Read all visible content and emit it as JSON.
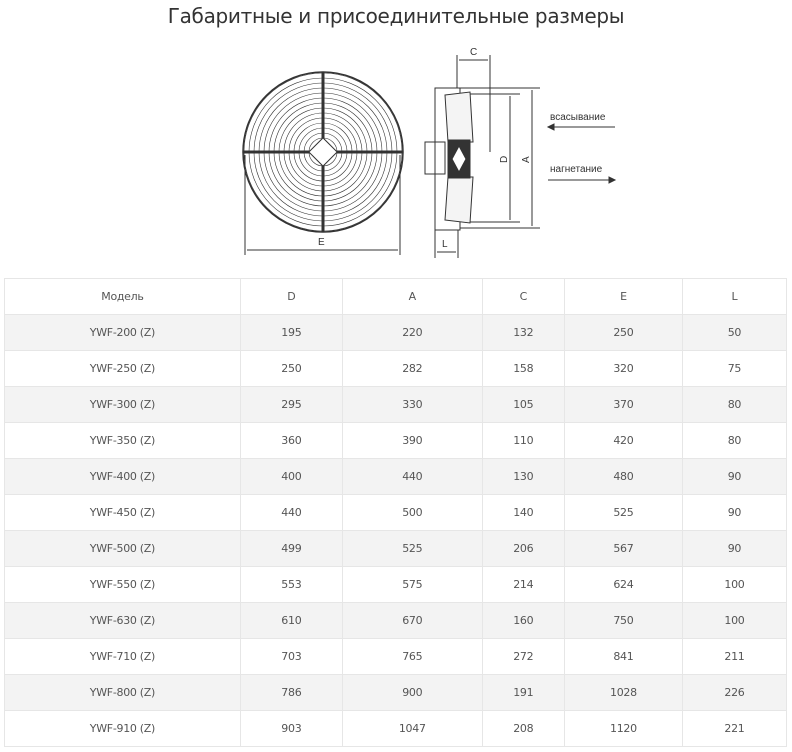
{
  "title": "Габаритные и присоединительные размеры",
  "diagram": {
    "labels": {
      "C": "C",
      "D": "D",
      "A": "A",
      "E": "E",
      "L": "L",
      "suction": "всасывание",
      "discharge": "нагнетание"
    }
  },
  "table": {
    "headers": [
      "Модель",
      "D",
      "A",
      "C",
      "E",
      "L"
    ],
    "rows": [
      [
        "YWF-200 (Z)",
        "195",
        "220",
        "132",
        "250",
        "50"
      ],
      [
        "YWF-250 (Z)",
        "250",
        "282",
        "158",
        "320",
        "75"
      ],
      [
        "YWF-300 (Z)",
        "295",
        "330",
        "105",
        "370",
        "80"
      ],
      [
        "YWF-350 (Z)",
        "360",
        "390",
        "110",
        "420",
        "80"
      ],
      [
        "YWF-400 (Z)",
        "400",
        "440",
        "130",
        "480",
        "90"
      ],
      [
        "YWF-450 (Z)",
        "440",
        "500",
        "140",
        "525",
        "90"
      ],
      [
        "YWF-500 (Z)",
        "499",
        "525",
        "206",
        "567",
        "90"
      ],
      [
        "YWF-550 (Z)",
        "553",
        "575",
        "214",
        "624",
        "100"
      ],
      [
        "YWF-630 (Z)",
        "610",
        "670",
        "160",
        "750",
        "100"
      ],
      [
        "YWF-710 (Z)",
        "703",
        "765",
        "272",
        "841",
        "211"
      ],
      [
        "YWF-800 (Z)",
        "786",
        "900",
        "191",
        "1028",
        "226"
      ],
      [
        "YWF-910 (Z)",
        "903",
        "1047",
        "208",
        "1120",
        "221"
      ]
    ]
  }
}
